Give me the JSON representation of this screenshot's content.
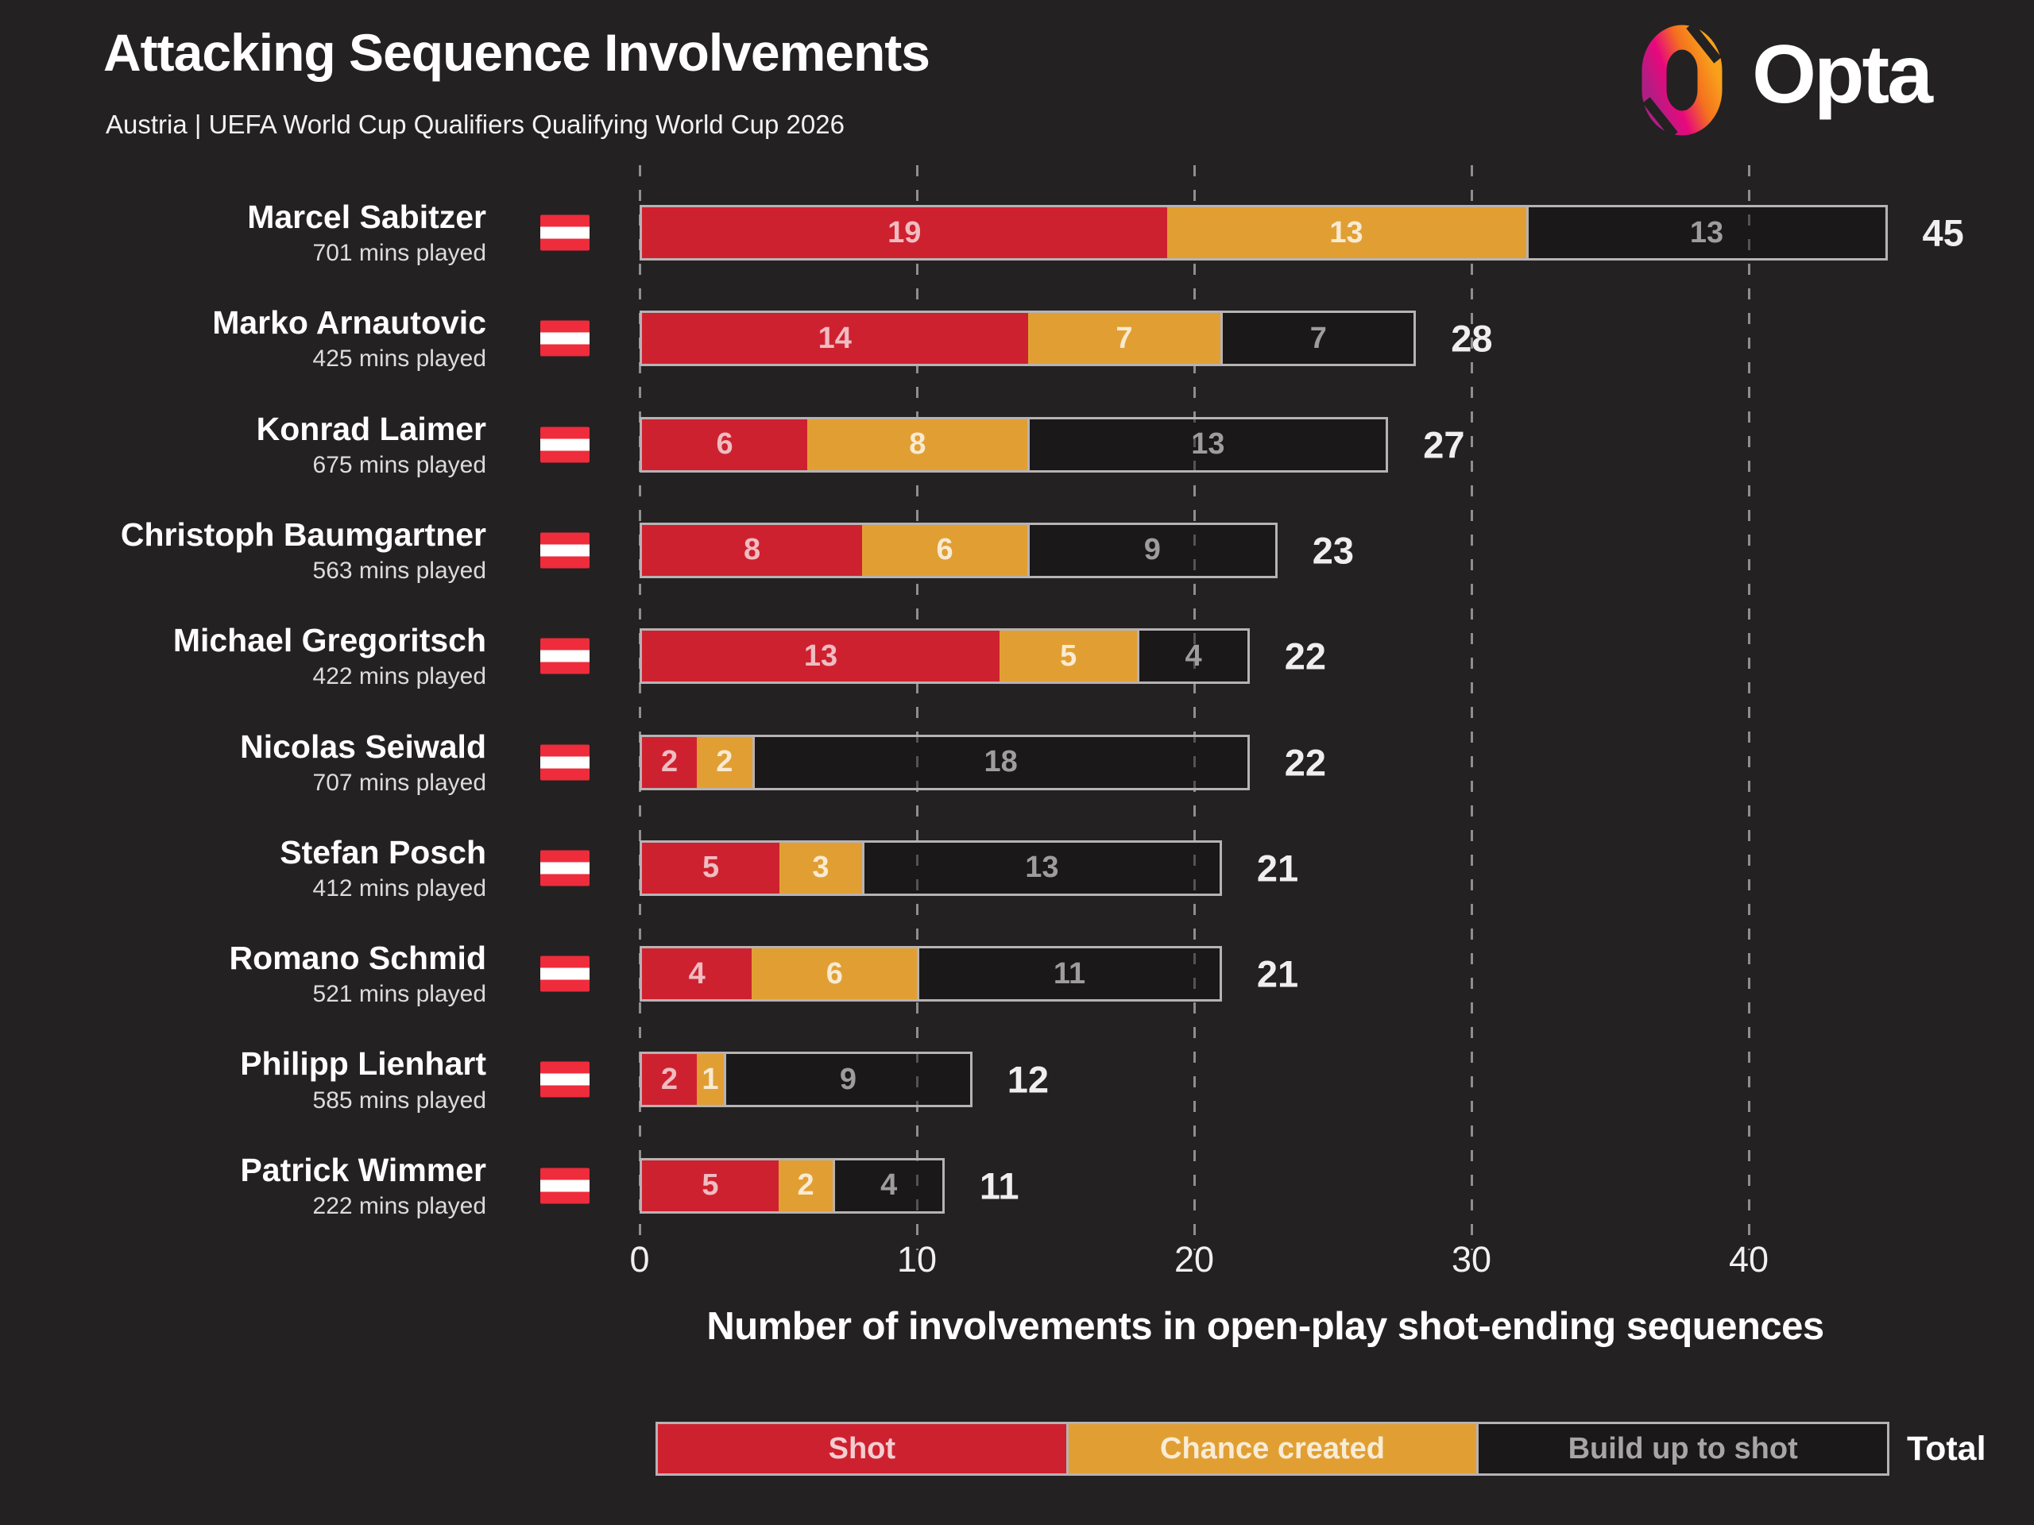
{
  "header": {
    "title": "Attacking Sequence Involvements",
    "subtitle": "Austria | UEFA World Cup Qualifiers Qualifying World Cup 2026",
    "brand": "Opta"
  },
  "colors": {
    "background": "#242122",
    "shot": "#ce2130",
    "chance_created": "#e19f33",
    "build_up_fill": "rgba(16,14,15,0.45)",
    "bar_border": "#b7b2b4",
    "gridline": "#8e8e8e",
    "flag_red": "#ee2c3c",
    "flag_white": "#ffffff",
    "logo_gradient": [
      "#b01e84",
      "#e8087c",
      "#f4711e",
      "#f9a11b"
    ]
  },
  "chart_data": {
    "type": "bar",
    "orientation": "horizontal",
    "stacked": true,
    "title": "Attacking Sequence Involvements",
    "subtitle": "Austria | UEFA World Cup Qualifiers Qualifying World Cup 2026",
    "xlabel": "Number of involvements in open-play shot-ending sequences",
    "xlim": [
      0,
      46
    ],
    "xticks": [
      0,
      10,
      20,
      30,
      40
    ],
    "grid": "vertical-dashed",
    "legend_position": "bottom",
    "series_names": [
      "Shot",
      "Chance created",
      "Build up to shot"
    ],
    "legend": {
      "shot": "Shot",
      "chance_created": "Chance created",
      "build_up": "Build up to shot",
      "total": "Total"
    },
    "players": [
      {
        "name": "Marcel Sabitzer",
        "mins": "701 mins played",
        "flag": "austria-flag",
        "shot": 19,
        "chance_created": 13,
        "build_up": 13,
        "total": 45
      },
      {
        "name": "Marko Arnautovic",
        "mins": "425 mins played",
        "flag": "austria-flag",
        "shot": 14,
        "chance_created": 7,
        "build_up": 7,
        "total": 28
      },
      {
        "name": "Konrad Laimer",
        "mins": "675 mins played",
        "flag": "austria-flag",
        "shot": 6,
        "chance_created": 8,
        "build_up": 13,
        "total": 27
      },
      {
        "name": "Christoph Baumgartner",
        "mins": "563 mins played",
        "flag": "austria-flag",
        "shot": 8,
        "chance_created": 6,
        "build_up": 9,
        "total": 23
      },
      {
        "name": "Michael Gregoritsch",
        "mins": "422 mins played",
        "flag": "austria-flag",
        "shot": 13,
        "chance_created": 5,
        "build_up": 4,
        "total": 22
      },
      {
        "name": "Nicolas Seiwald",
        "mins": "707 mins played",
        "flag": "austria-flag",
        "shot": 2,
        "chance_created": 2,
        "build_up": 18,
        "total": 22
      },
      {
        "name": "Stefan Posch",
        "mins": "412 mins played",
        "flag": "austria-flag",
        "shot": 5,
        "chance_created": 3,
        "build_up": 13,
        "total": 21
      },
      {
        "name": "Romano Schmid",
        "mins": "521 mins played",
        "flag": "austria-flag",
        "shot": 4,
        "chance_created": 6,
        "build_up": 11,
        "total": 21
      },
      {
        "name": "Philipp Lienhart",
        "mins": "585 mins played",
        "flag": "austria-flag",
        "shot": 2,
        "chance_created": 1,
        "build_up": 9,
        "total": 12
      },
      {
        "name": "Patrick Wimmer",
        "mins": "222 mins played",
        "flag": "austria-flag",
        "shot": 5,
        "chance_created": 2,
        "build_up": 4,
        "total": 11
      }
    ]
  }
}
